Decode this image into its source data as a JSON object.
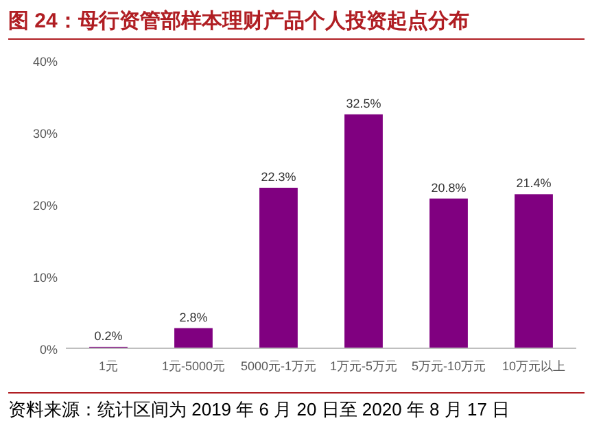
{
  "chart_data": {
    "type": "bar",
    "title": "图 24：母行资管部样本理财产品个人投资起点分布",
    "categories": [
      "1元",
      "1元-5000元",
      "5000元-1万元",
      "1万元-5万元",
      "5万元-10万元",
      "10万元以上"
    ],
    "values": [
      0.2,
      2.8,
      22.3,
      32.5,
      20.8,
      21.4
    ],
    "value_labels": [
      "0.2%",
      "2.8%",
      "22.3%",
      "32.5%",
      "20.8%",
      "21.4%"
    ],
    "color": "#800080",
    "ylim": [
      0,
      40
    ],
    "yticks": [
      {
        "value": 0,
        "label": "0%"
      },
      {
        "value": 10,
        "label": "10%"
      },
      {
        "value": 20,
        "label": "20%"
      },
      {
        "value": 30,
        "label": "30%"
      },
      {
        "value": 40,
        "label": "40%"
      }
    ],
    "grid": false,
    "annotations": [
      "资料来源：统计区间为 2019 年 6 月 20 日至 2020 年 8 月 17 日"
    ]
  }
}
